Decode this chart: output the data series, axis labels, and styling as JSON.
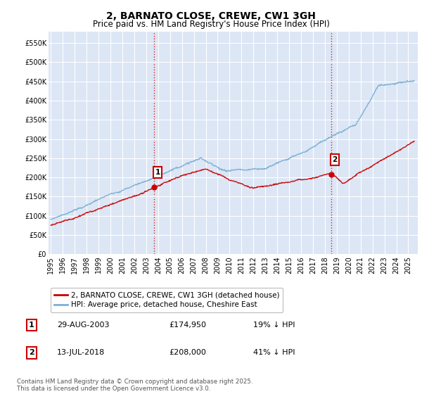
{
  "title": "2, BARNATO CLOSE, CREWE, CW1 3GH",
  "subtitle": "Price paid vs. HM Land Registry's House Price Index (HPI)",
  "ylabel_ticks": [
    "£0",
    "£50K",
    "£100K",
    "£150K",
    "£200K",
    "£250K",
    "£300K",
    "£350K",
    "£400K",
    "£450K",
    "£500K",
    "£550K"
  ],
  "ytick_values": [
    0,
    50000,
    100000,
    150000,
    200000,
    250000,
    300000,
    350000,
    400000,
    450000,
    500000,
    550000
  ],
  "ylim": [
    0,
    580000
  ],
  "xlim_start": 1994.8,
  "xlim_end": 2025.8,
  "xtick_years": [
    1995,
    1996,
    1997,
    1998,
    1999,
    2000,
    2001,
    2002,
    2003,
    2004,
    2005,
    2006,
    2007,
    2008,
    2009,
    2010,
    2011,
    2012,
    2013,
    2014,
    2015,
    2016,
    2017,
    2018,
    2019,
    2020,
    2021,
    2022,
    2023,
    2024,
    2025
  ],
  "marker1_x": 2003.66,
  "marker1_y": 174950,
  "marker1_label": "1",
  "marker1_date": "29-AUG-2003",
  "marker1_price": "£174,950",
  "marker1_hpi": "19% ↓ HPI",
  "marker2_x": 2018.54,
  "marker2_y": 208000,
  "marker2_label": "2",
  "marker2_date": "13-JUL-2018",
  "marker2_price": "£208,000",
  "marker2_hpi": "41% ↓ HPI",
  "line1_color": "#cc0000",
  "line2_color": "#7bafd4",
  "vline_color": "#cc0000",
  "plot_bg_color": "#dce6f5",
  "grid_color": "#ffffff",
  "legend1_label": "2, BARNATO CLOSE, CREWE, CW1 3GH (detached house)",
  "legend2_label": "HPI: Average price, detached house, Cheshire East",
  "footer": "Contains HM Land Registry data © Crown copyright and database right 2025.\nThis data is licensed under the Open Government Licence v3.0.",
  "title_fontsize": 10,
  "subtitle_fontsize": 8.5,
  "tick_fontsize": 7
}
